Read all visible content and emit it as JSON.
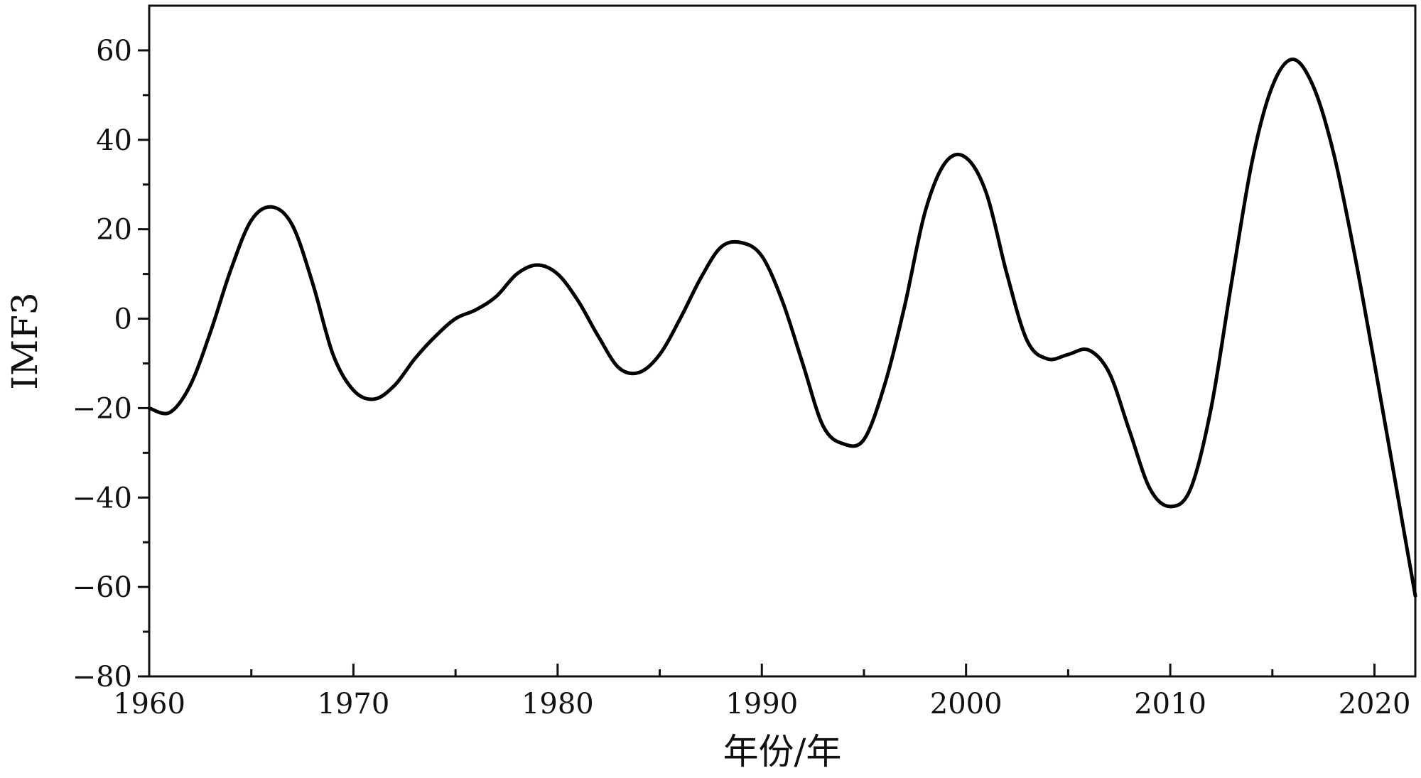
{
  "chart_data": {
    "type": "line",
    "title": "",
    "xlabel": "年份/年",
    "ylabel": "IMF3",
    "xlim": [
      1960,
      2022
    ],
    "ylim": [
      -80,
      70
    ],
    "x_ticks": [
      1960,
      1970,
      1980,
      1990,
      2000,
      2010,
      2020
    ],
    "x_tick_labels": [
      "1960",
      "1970",
      "1980",
      "1990",
      "2000",
      "2010",
      "2020"
    ],
    "y_ticks": [
      -80,
      -60,
      -40,
      -20,
      0,
      20,
      40,
      60
    ],
    "y_tick_labels": [
      "−80",
      "−60",
      "−40",
      "−20",
      "0",
      "20",
      "40",
      "60"
    ],
    "grid": false,
    "legend": "none",
    "line_color": "#000000",
    "series": [
      {
        "x": [
          1960,
          1961,
          1962,
          1963,
          1964,
          1965,
          1966,
          1967,
          1968,
          1969,
          1970,
          1971,
          1972,
          1973,
          1974,
          1975,
          1976,
          1977,
          1978,
          1979,
          1980,
          1981,
          1982,
          1983,
          1984,
          1985,
          1986,
          1987,
          1988,
          1989,
          1990,
          1991,
          1992,
          1993,
          1994,
          1995,
          1996,
          1997,
          1998,
          1999,
          2000,
          2001,
          2002,
          2003,
          2004,
          2005,
          2006,
          2007,
          2008,
          2009,
          2010,
          2011,
          2012,
          2013,
          2014,
          2015,
          2016,
          2017,
          2018,
          2019,
          2020,
          2021,
          2022
        ],
        "values": [
          -20,
          -21,
          -15,
          -3,
          11,
          22,
          25,
          21,
          8,
          -8,
          -16,
          -18,
          -15,
          -9,
          -4,
          0,
          2,
          5,
          10,
          12,
          10,
          4,
          -4,
          -11,
          -12,
          -8,
          0,
          9,
          16,
          17,
          14,
          4,
          -10,
          -24,
          -28,
          -27,
          -15,
          3,
          24,
          35,
          36,
          28,
          10,
          -5,
          -9,
          -8,
          -7,
          -12,
          -25,
          -38,
          -42,
          -38,
          -20,
          8,
          35,
          52,
          58,
          52,
          37,
          15,
          -10,
          -36,
          -62
        ]
      }
    ]
  }
}
